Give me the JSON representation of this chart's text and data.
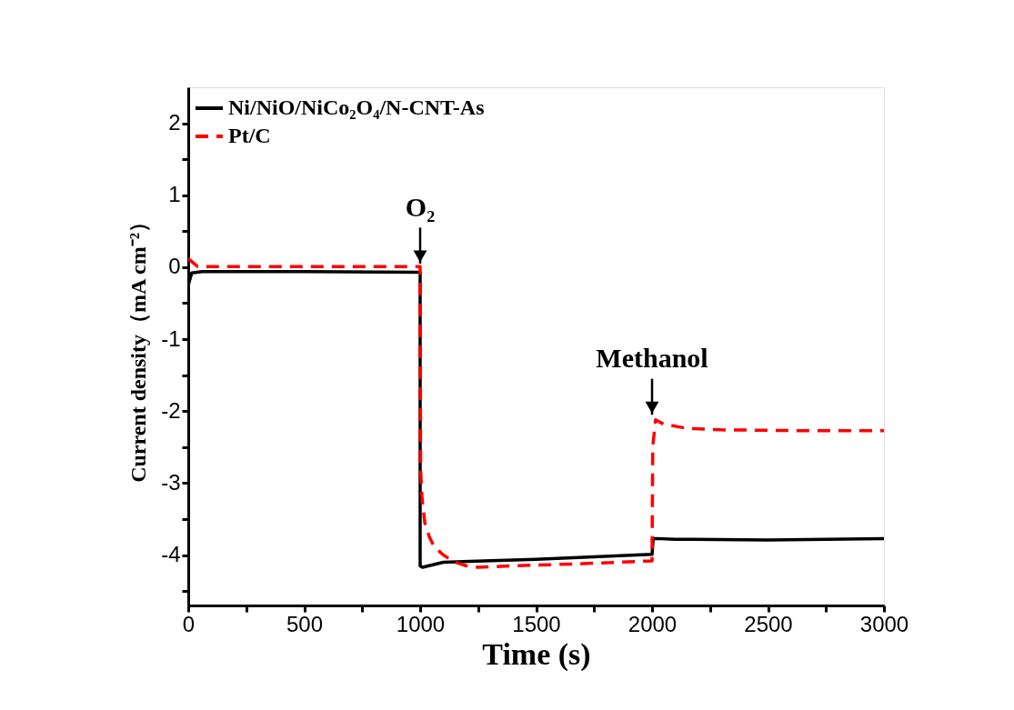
{
  "chart_data": {
    "type": "line",
    "xlabel": "Time (s)",
    "ylabel": "Current density（mA cm⁻²）",
    "xlim": [
      0,
      3000
    ],
    "ylim": [
      -4.7,
      2.5
    ],
    "xticks": [
      0,
      {
        "value": 250,
        "label": null
      },
      500,
      {
        "value": 750,
        "label": null
      },
      1000,
      {
        "value": 1250,
        "label": null
      },
      1500,
      {
        "value": 1750,
        "label": null
      },
      2000,
      {
        "value": 2250,
        "label": null
      },
      2500,
      {
        "value": 2750,
        "label": null
      },
      3000
    ],
    "yticks": [
      {
        "value": -4.5,
        "label": null
      },
      -4,
      {
        "value": -3.5,
        "label": null
      },
      -3,
      {
        "value": -2.5,
        "label": null
      },
      -2,
      {
        "value": -1.5,
        "label": null
      },
      -1,
      {
        "value": -0.5,
        "label": null
      },
      0,
      {
        "value": 0.5,
        "label": null
      },
      1,
      {
        "value": 1.5,
        "label": null
      },
      2
    ],
    "grid": false,
    "legend": "top left",
    "marker": "none",
    "series": [
      {
        "name": "Ni/NiO/NiCo₂O₄/N-CNT-As",
        "color": "#000000",
        "line_style": "solid",
        "x": [
          0,
          15,
          60,
          500,
          1000,
          1000,
          1010,
          1100,
          1500,
          2000,
          2005,
          2020,
          2100,
          2500,
          3000
        ],
        "values": [
          -0.25,
          -0.08,
          -0.06,
          -0.06,
          -0.07,
          -4.15,
          -4.17,
          -4.1,
          -4.06,
          -3.99,
          -3.77,
          -3.77,
          -3.78,
          -3.79,
          -3.77
        ]
      },
      {
        "name": "Pt/C",
        "color": "#ff0000",
        "line_style": "dashed",
        "x": [
          0,
          40,
          500,
          1000,
          1002,
          1008,
          1020,
          1040,
          1060,
          1100,
          1150,
          1200,
          1250,
          1400,
          1700,
          2000,
          2003,
          2015,
          2050,
          2150,
          2300,
          2600,
          3000
        ],
        "values": [
          0.12,
          0.01,
          0.01,
          0.01,
          -2.8,
          -3.2,
          -3.55,
          -3.75,
          -3.88,
          -4.0,
          -4.1,
          -4.15,
          -4.17,
          -4.15,
          -4.12,
          -4.08,
          -2.5,
          -2.12,
          -2.18,
          -2.24,
          -2.26,
          -2.27,
          -2.27
        ]
      }
    ],
    "annotations": [
      {
        "text": "O₂",
        "x": 1000,
        "y": 0.05
      },
      {
        "text": "Methanol",
        "x": 2000,
        "y": -2.05
      }
    ]
  }
}
